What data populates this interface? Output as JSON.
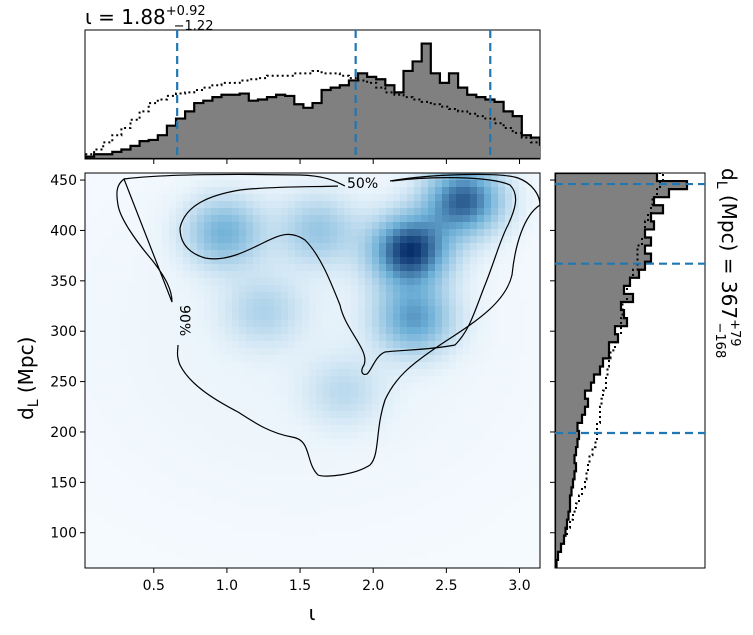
{
  "chart_data": {
    "type": "corner",
    "x": {
      "name": "ι",
      "range": [
        0.03,
        3.14
      ],
      "ticks": [
        0.5,
        1.0,
        1.5,
        2.0,
        2.5,
        3.0
      ],
      "tick_labels": [
        "0.5",
        "1.0",
        "1.5",
        "2.0",
        "2.5",
        "3.0"
      ],
      "summary": {
        "median": 1.88,
        "plus": 0.92,
        "minus": 1.22,
        "lower": 0.66,
        "upper": 2.8
      }
    },
    "y": {
      "name": "d_L (Mpc)",
      "range": [
        65,
        457
      ],
      "ticks": [
        100,
        150,
        200,
        250,
        300,
        350,
        400,
        450
      ],
      "tick_labels": [
        "100",
        "150",
        "200",
        "250",
        "300",
        "350",
        "400",
        "450"
      ],
      "summary": {
        "median": 367,
        "plus": 79,
        "minus": 168,
        "lower": 199,
        "upper": 446
      }
    },
    "titles": {
      "top": {
        "prefix": "ι = 1.88",
        "sup": "+0.92",
        "sub": "−1.22"
      },
      "right": {
        "prefix": "d",
        "prefix_sub": "L",
        "middle": " (Mpc) = 367",
        "sup": "+79",
        "sub": "−168"
      }
    },
    "xlabel": {
      "main": "ι"
    },
    "ylabel": {
      "main": "d",
      "sub": "L",
      "rest": " (Mpc)"
    },
    "contour_labels": [
      "50%",
      "90%"
    ],
    "density_peaks": [
      {
        "x": 2.25,
        "y": 380,
        "w": 1.0
      },
      {
        "x": 2.62,
        "y": 430,
        "w": 0.85
      },
      {
        "x": 2.28,
        "y": 312,
        "w": 0.6
      },
      {
        "x": 0.98,
        "y": 398,
        "w": 0.5
      },
      {
        "x": 1.62,
        "y": 400,
        "w": 0.35
      },
      {
        "x": 1.25,
        "y": 320,
        "w": 0.25
      },
      {
        "x": 1.8,
        "y": 240,
        "w": 0.2
      }
    ],
    "hist_x": {
      "edges_start": 0.03,
      "bin_width": 0.0622,
      "solid": [
        0.02,
        0.04,
        0.04,
        0.06,
        0.08,
        0.11,
        0.15,
        0.16,
        0.2,
        0.28,
        0.34,
        0.4,
        0.47,
        0.49,
        0.52,
        0.54,
        0.54,
        0.55,
        0.49,
        0.5,
        0.52,
        0.54,
        0.53,
        0.46,
        0.43,
        0.47,
        0.58,
        0.6,
        0.62,
        0.66,
        0.72,
        0.69,
        0.67,
        0.62,
        0.56,
        0.74,
        0.82,
        0.97,
        0.72,
        0.64,
        0.72,
        0.6,
        0.54,
        0.52,
        0.5,
        0.48,
        0.4,
        0.36,
        0.2,
        0.18,
        0.12,
        0.08
      ],
      "dotted": [
        0.04,
        0.08,
        0.14,
        0.2,
        0.26,
        0.33,
        0.4,
        0.47,
        0.5,
        0.53,
        0.55,
        0.56,
        0.58,
        0.6,
        0.62,
        0.64,
        0.64,
        0.66,
        0.67,
        0.68,
        0.7,
        0.7,
        0.7,
        0.72,
        0.72,
        0.74,
        0.72,
        0.72,
        0.7,
        0.68,
        0.66,
        0.64,
        0.6,
        0.56,
        0.54,
        0.52,
        0.5,
        0.48,
        0.46,
        0.44,
        0.42,
        0.4,
        0.38,
        0.36,
        0.34,
        0.3,
        0.26,
        0.22,
        0.18,
        0.14,
        0.1,
        0.05
      ]
    },
    "hist_y": {
      "edges_start": 65,
      "bin_width": 8,
      "solid": [
        0.01,
        0.02,
        0.04,
        0.06,
        0.07,
        0.08,
        0.09,
        0.1,
        0.1,
        0.11,
        0.12,
        0.13,
        0.14,
        0.13,
        0.14,
        0.15,
        0.16,
        0.15,
        0.18,
        0.2,
        0.22,
        0.2,
        0.24,
        0.26,
        0.3,
        0.32,
        0.36,
        0.36,
        0.42,
        0.4,
        0.48,
        0.46,
        0.44,
        0.52,
        0.46,
        0.5,
        0.56,
        0.6,
        0.64,
        0.6,
        0.64,
        0.6,
        0.66,
        0.64,
        0.72,
        0.66,
        0.76,
        0.88,
        0.68
      ],
      "dotted": [
        0.0,
        0.02,
        0.04,
        0.06,
        0.08,
        0.1,
        0.12,
        0.14,
        0.16,
        0.18,
        0.2,
        0.21,
        0.22,
        0.23,
        0.25,
        0.27,
        0.28,
        0.28,
        0.3,
        0.3,
        0.31,
        0.32,
        0.34,
        0.34,
        0.35,
        0.36,
        0.37,
        0.4,
        0.42,
        0.44,
        0.44,
        0.45,
        0.45,
        0.48,
        0.48,
        0.5,
        0.52,
        0.55,
        0.55,
        0.55,
        0.58,
        0.6,
        0.6,
        0.62,
        0.64,
        0.65,
        0.68,
        0.7,
        0.72
      ]
    },
    "colors": {
      "hist_fill": "#808080",
      "quantile_line": "#1f77b4",
      "contour": "#000000",
      "density_dark": "#08306b"
    }
  }
}
